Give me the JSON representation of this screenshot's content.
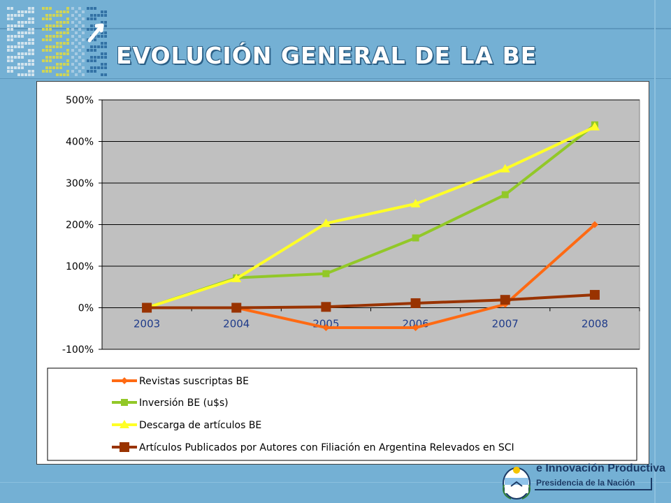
{
  "slide": {
    "title": "EVOLUCIÓN GENERAL DE LA BE",
    "background_color": "#74b0d4",
    "footer_brand": {
      "line1": "e Innovación Productiva",
      "line2": "Presidencia de la Nación"
    }
  },
  "chart_data": {
    "type": "line",
    "categories": [
      "2003",
      "2004",
      "2005",
      "2006",
      "2007",
      "2008"
    ],
    "ylim": [
      -100,
      500
    ],
    "yticks": [
      -100,
      0,
      100,
      200,
      300,
      400,
      500
    ],
    "ytick_labels": [
      "-100%",
      "0%",
      "100%",
      "200%",
      "300%",
      "400%",
      "500%"
    ],
    "grid": true,
    "plot_background": "#c0c0c0",
    "legend_position": "bottom",
    "series": [
      {
        "name": "Revistas suscriptas BE",
        "color": "#ff6a13",
        "marker": "diamond",
        "values": [
          0,
          0,
          -48,
          -48,
          8,
          200
        ]
      },
      {
        "name": "Inversión BE (u$s)",
        "color": "#92c828",
        "marker": "square",
        "values": [
          0,
          72,
          82,
          168,
          272,
          440
        ]
      },
      {
        "name": "Descarga de artículos BE",
        "color": "#ffff26",
        "marker": "triangle",
        "values": [
          0,
          70,
          203,
          250,
          334,
          435
        ]
      },
      {
        "name": "Artículos Publicados por Autores con Filiación en Argentina Relevados en SCI",
        "color": "#993300",
        "marker": "bigsquare",
        "values": [
          0,
          0,
          2,
          11,
          19,
          31
        ]
      }
    ]
  }
}
